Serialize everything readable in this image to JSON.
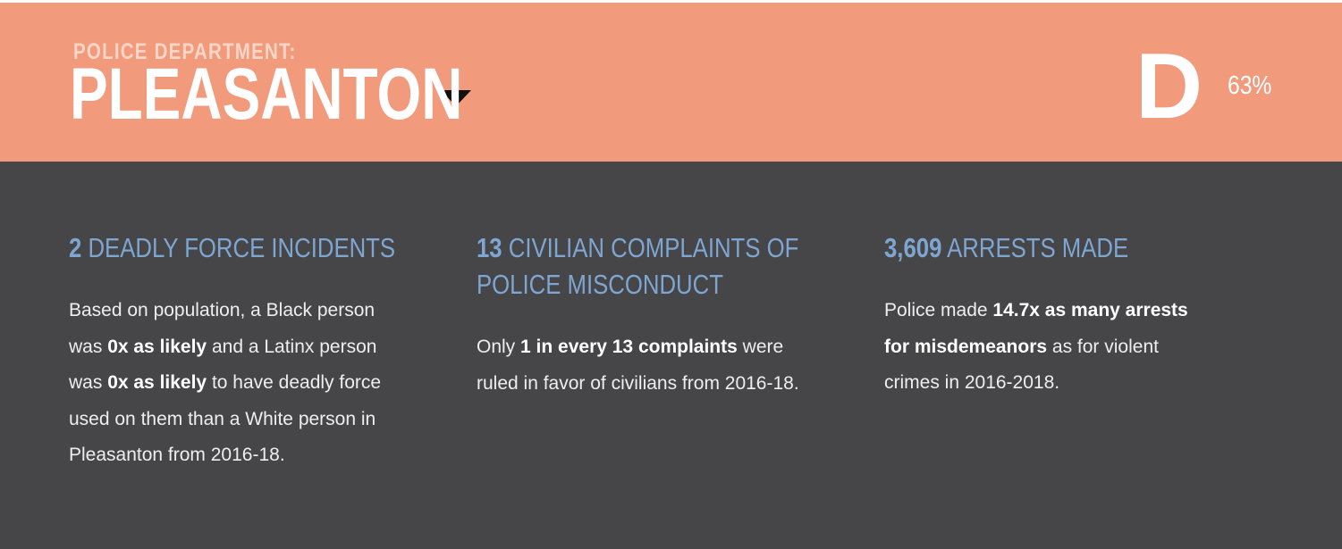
{
  "header": {
    "eyebrow": "POLICE DEPARTMENT:",
    "department": "PLEASANTON",
    "grade": "D",
    "grade_percent": "63%"
  },
  "stats": [
    {
      "number": "2",
      "title": " DEADLY FORCE INCIDENTS",
      "body": [
        {
          "t": "Based on population, a Black person was ",
          "b": false
        },
        {
          "t": "0x as likely",
          "b": true
        },
        {
          "t": " and a Latinx person was ",
          "b": false
        },
        {
          "t": "0x as likely",
          "b": true
        },
        {
          "t": " to have deadly force used on them than a White person in Pleasanton from 2016-18.",
          "b": false
        }
      ]
    },
    {
      "number": "13",
      "title": " CIVILIAN COMPLAINTS OF",
      "title_line2": "POLICE MISCONDUCT",
      "body": [
        {
          "t": "Only ",
          "b": false
        },
        {
          "t": "1 in every 13 complaints",
          "b": true
        },
        {
          "t": " were ruled in favor of civilians from 2016-18.",
          "b": false
        }
      ]
    },
    {
      "number": "3,609",
      "title": " ARRESTS MADE",
      "body": [
        {
          "t": "Police made ",
          "b": false
        },
        {
          "t": "14.7x as many arrests for misdemeanors",
          "b": true
        },
        {
          "t": " as for violent crimes in 2016-2018.",
          "b": false
        }
      ]
    }
  ],
  "colors": {
    "header_bg": "#f29a7c",
    "body_bg": "#464648",
    "accent_blue": "#7ea6d1"
  }
}
